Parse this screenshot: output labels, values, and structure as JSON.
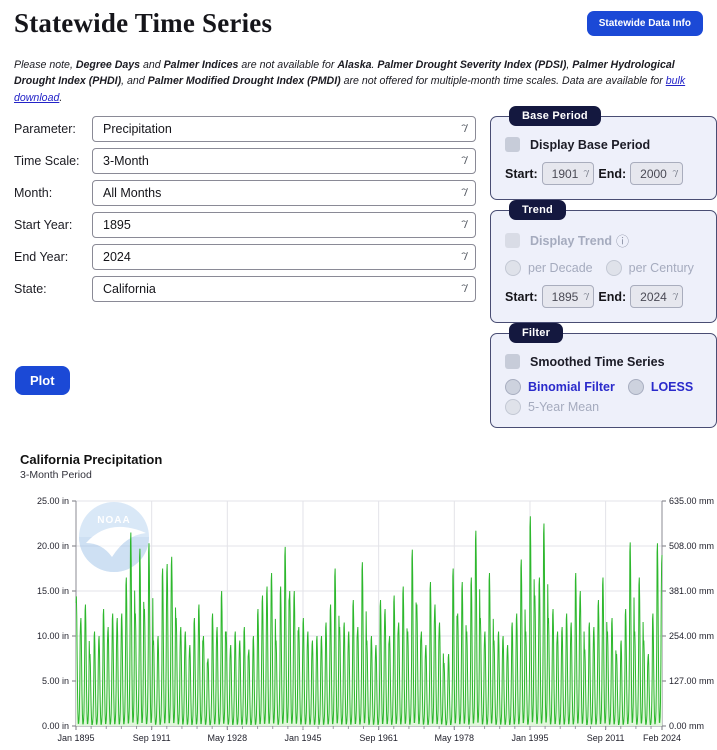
{
  "header": {
    "title": "Statewide Time Series",
    "info_button": "Statewide Data Info"
  },
  "notice": {
    "segments": [
      {
        "text": "Please note, "
      },
      {
        "text": "Degree Days",
        "bold": true
      },
      {
        "text": " and "
      },
      {
        "text": "Palmer Indices",
        "bold": true
      },
      {
        "text": " are not available for "
      },
      {
        "text": "Alaska",
        "bold": true
      },
      {
        "text": ". "
      },
      {
        "text": "Palmer Drought Severity Index (PDSI)",
        "bold": true
      },
      {
        "text": ", "
      },
      {
        "text": "Palmer Hydrological Drought Index (PHDI)",
        "bold": true
      },
      {
        "text": ", and "
      },
      {
        "text": "Palmer Modified Drought Index (PMDI)",
        "bold": true
      },
      {
        "text": " are not offered for multiple-month time scales. Data are available for "
      },
      {
        "text": "bulk download",
        "link": true
      },
      {
        "text": "."
      }
    ]
  },
  "form": {
    "fields": [
      {
        "label": "Parameter:",
        "value": "Precipitation"
      },
      {
        "label": "Time Scale:",
        "value": "3-Month"
      },
      {
        "label": "Month:",
        "value": "All Months"
      },
      {
        "label": "Start Year:",
        "value": "1895"
      },
      {
        "label": "End Year:",
        "value": "2024"
      },
      {
        "label": "State:",
        "value": "California"
      }
    ],
    "plot_button": "Plot"
  },
  "panels": {
    "base_period": {
      "title": "Base Period",
      "checkbox_label": "Display Base Period",
      "start_label": "Start:",
      "start_value": "1901",
      "end_label": "End:",
      "end_value": "2000"
    },
    "trend": {
      "title": "Trend",
      "checkbox_label": "Display Trend",
      "info_icon": "ⓘ",
      "radio_decade": "per Decade",
      "radio_century": "per Century",
      "start_label": "Start:",
      "start_value": "1895",
      "end_label": "End:",
      "end_value": "2024"
    },
    "filter": {
      "title": "Filter",
      "checkbox_label": "Smoothed Time Series",
      "radio_binomial": "Binomial Filter",
      "radio_loess": "LOESS",
      "radio_5yr": "5-Year Mean"
    }
  },
  "colors": {
    "accent_blue": "#1b49d6",
    "pill_navy": "#14183f",
    "panel_bg": "#eef0fa",
    "line_green": "#2db72d",
    "area_green": "#e1f6dc",
    "link_blue": "#2323c8"
  },
  "chart_data": {
    "type": "line",
    "title": "California Precipitation",
    "subtitle": "3-Month Period",
    "watermark": "NOAA",
    "ylim": [
      0,
      25
    ],
    "grid": true,
    "y_left_values": [
      0,
      5,
      10,
      15,
      20,
      25
    ],
    "y_left_ticks": [
      "0.00 in",
      "5.00 in",
      "10.00 in",
      "15.00 in",
      "20.00 in",
      "25.00 in"
    ],
    "y_right_ticks": [
      "0.00 mm",
      "127.00 mm",
      "254.00 mm",
      "381.00 mm",
      "508.00 mm",
      "635.00 mm"
    ],
    "x_tick_labels": [
      "Jan 1895",
      "Sep 1911",
      "May 1928",
      "Jan 1945",
      "Sep 1961",
      "May 1978",
      "Jan 1995",
      "Sep 2011",
      "Feb 2024"
    ],
    "x_tick_months": [
      0,
      200,
      400,
      600,
      800,
      1000,
      1200,
      1400,
      1549
    ],
    "total_months": 1550,
    "start_year": 1895,
    "end_year": 2024,
    "last_year_months": 2,
    "seasonal_profile": [
      0.95,
      1.0,
      0.85,
      0.55,
      0.28,
      0.1,
      0.02,
      0.02,
      0.05,
      0.13,
      0.35,
      0.7
    ],
    "annual_peaks": [
      14.4,
      12.0,
      13.5,
      8.0,
      10.5,
      10.0,
      13.0,
      11.0,
      12.5,
      12.0,
      12.5,
      16.5,
      21.5,
      12.5,
      19.7,
      13.0,
      20.3,
      9.5,
      10.0,
      17.5,
      18.0,
      18.8,
      12.0,
      11.0,
      10.5,
      9.0,
      12.0,
      13.5,
      10.0,
      7.5,
      12.5,
      11.0,
      15.0,
      10.5,
      9.0,
      10.5,
      9.5,
      11.0,
      8.5,
      10.0,
      13.0,
      14.5,
      15.5,
      17.0,
      9.5,
      15.5,
      19.9,
      15.0,
      15.0,
      11.0,
      12.0,
      10.5,
      9.5,
      10.0,
      10.0,
      11.5,
      13.5,
      17.5,
      11.0,
      11.5,
      10.5,
      14.0,
      11.0,
      18.2,
      9.5,
      10.0,
      9.0,
      14.0,
      13.0,
      10.0,
      14.5,
      11.5,
      15.5,
      10.5,
      19.6,
      13.5,
      10.5,
      9.0,
      16.0,
      13.5,
      11.5,
      7.0,
      8.0,
      17.5,
      12.5,
      16.0,
      10.5,
      16.5,
      21.7,
      12.0,
      10.5,
      17.0,
      9.5,
      10.5,
      10.0,
      9.0,
      11.5,
      12.5,
      18.5,
      10.5,
      23.3,
      14.5,
      16.5,
      22.5,
      12.0,
      13.0,
      10.5,
      11.0,
      12.5,
      11.5,
      17.0,
      15.0,
      8.5,
      11.5,
      11.0,
      14.0,
      16.5,
      10.5,
      12.0,
      8.0,
      9.5,
      13.0,
      20.4,
      10.5,
      16.5,
      9.5,
      8.0,
      12.5,
      20.3,
      19.0
    ]
  }
}
